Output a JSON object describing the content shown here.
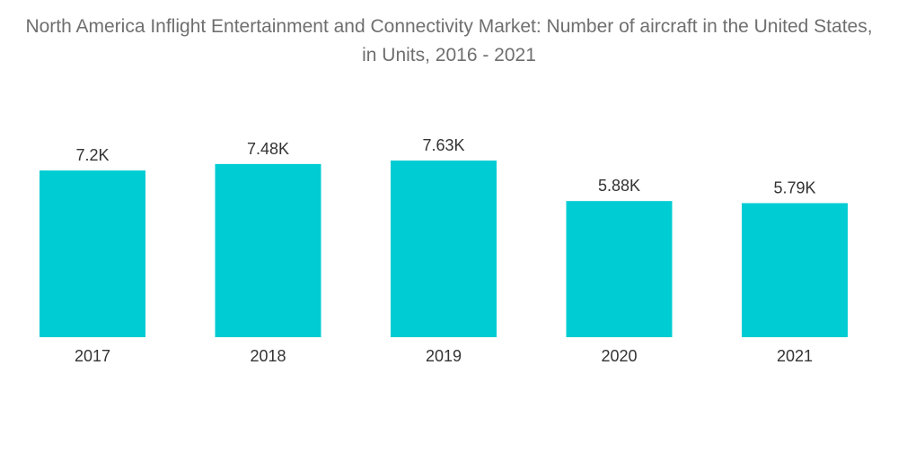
{
  "chart_data": {
    "type": "bar",
    "title": "North America Inflight Entertainment and Connectivity Market: Number of aircraft in the United States, in Units, 2016 - 2021",
    "categories": [
      "2017",
      "2018",
      "2019",
      "2020",
      "2021"
    ],
    "values": [
      7.2,
      7.48,
      7.63,
      5.88,
      5.79
    ],
    "value_labels": [
      "7.2K",
      "7.48K",
      "7.63K",
      "5.88K",
      "5.79K"
    ],
    "unit": "thousand units",
    "xlabel": "",
    "ylabel": "",
    "ylim": [
      0,
      8.2
    ],
    "grid": false,
    "legend": "none",
    "bar_color": "#00ccd3"
  }
}
